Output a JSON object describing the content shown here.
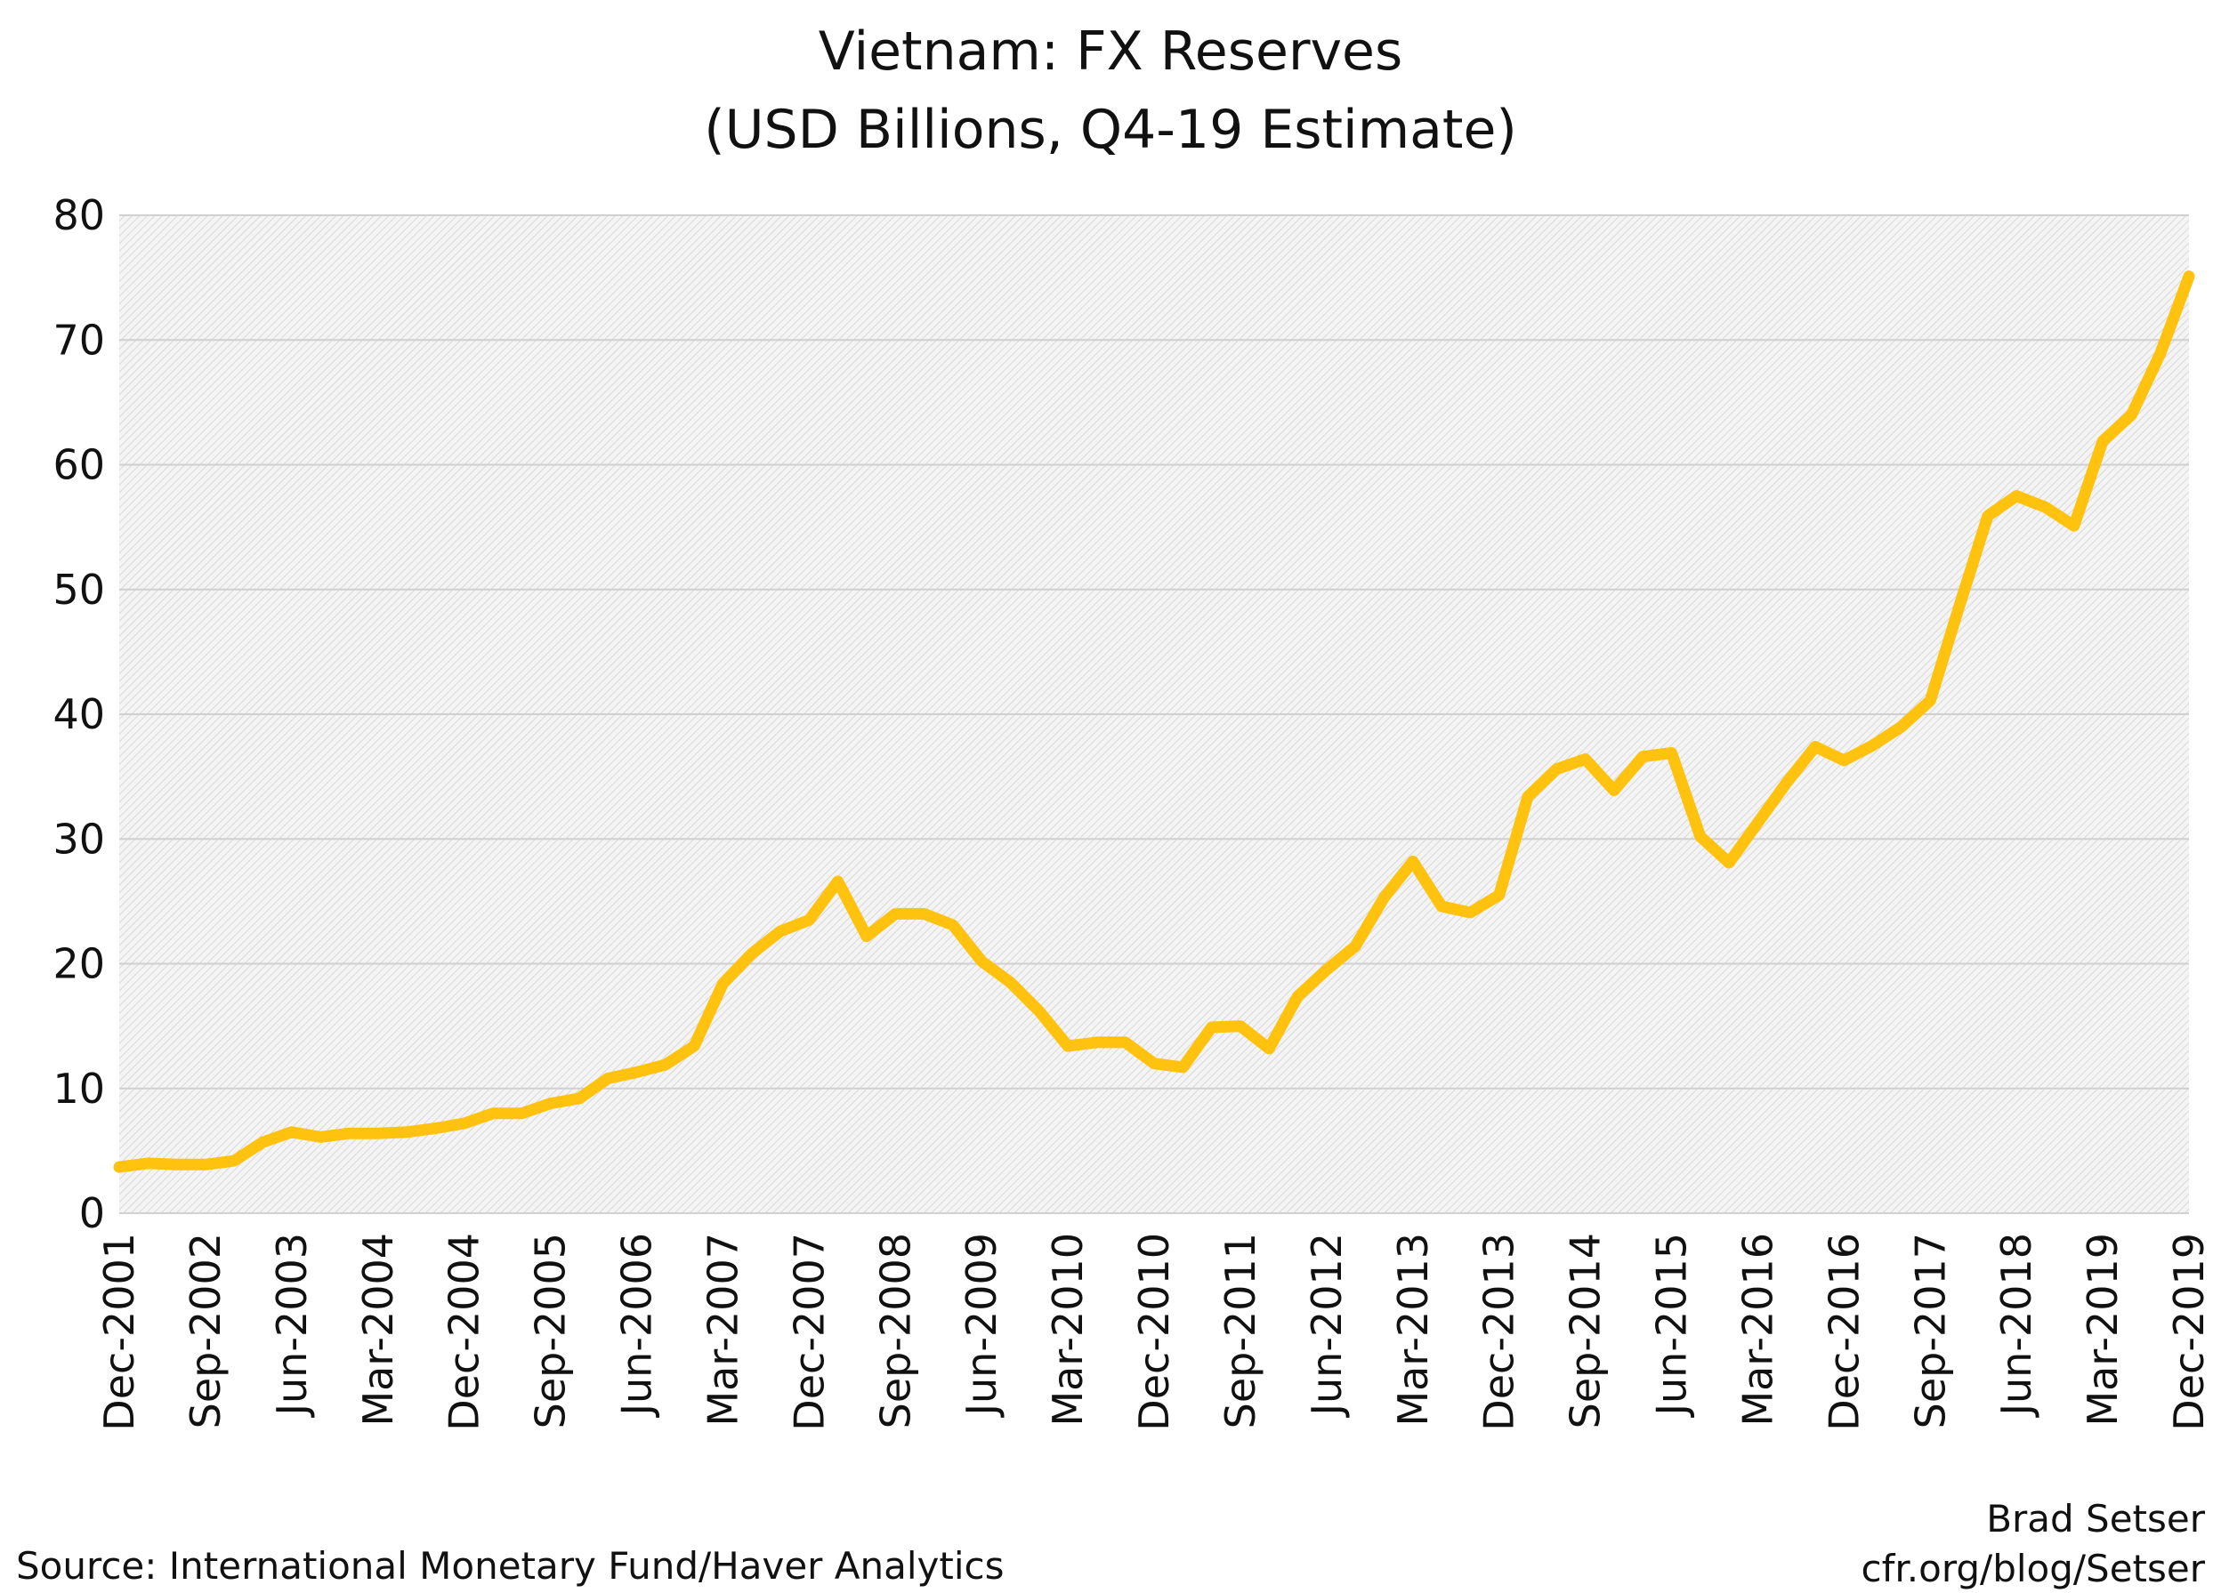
{
  "chart_data": {
    "type": "line",
    "title": "Vietnam: FX Reserves",
    "subtitle": "(USD Billions, Q4-19 Estimate)",
    "xlabel": "",
    "ylabel": "",
    "ylim": [
      0,
      80
    ],
    "yticks": [
      0,
      10,
      20,
      30,
      40,
      50,
      60,
      70,
      80
    ],
    "grid": true,
    "line_color": "#FFC20E",
    "x": [
      "Dec-2001",
      "Mar-2002",
      "Jun-2002",
      "Sep-2002",
      "Dec-2002",
      "Mar-2003",
      "Jun-2003",
      "Sep-2003",
      "Dec-2003",
      "Mar-2004",
      "Jun-2004",
      "Sep-2004",
      "Dec-2004",
      "Mar-2005",
      "Jun-2005",
      "Sep-2005",
      "Dec-2005",
      "Mar-2006",
      "Jun-2006",
      "Sep-2006",
      "Dec-2006",
      "Mar-2007",
      "Jun-2007",
      "Sep-2007",
      "Dec-2007",
      "Mar-2008",
      "Jun-2008",
      "Sep-2008",
      "Dec-2008",
      "Mar-2009",
      "Jun-2009",
      "Sep-2009",
      "Dec-2009",
      "Mar-2010",
      "Jun-2010",
      "Sep-2010",
      "Dec-2010",
      "Mar-2011",
      "Jun-2011",
      "Sep-2011",
      "Dec-2011",
      "Mar-2012",
      "Jun-2012",
      "Sep-2012",
      "Dec-2012",
      "Mar-2013",
      "Jun-2013",
      "Sep-2013",
      "Dec-2013",
      "Mar-2014",
      "Jun-2014",
      "Sep-2014",
      "Dec-2014",
      "Mar-2015",
      "Jun-2015",
      "Sep-2015",
      "Dec-2015",
      "Mar-2016",
      "Jun-2016",
      "Sep-2016",
      "Dec-2016",
      "Mar-2017",
      "Jun-2017",
      "Sep-2017",
      "Dec-2017",
      "Mar-2018",
      "Jun-2018",
      "Sep-2018",
      "Dec-2018",
      "Mar-2019",
      "Jun-2019",
      "Sep-2019",
      "Dec-2019"
    ],
    "xtick_labels": [
      "Dec-2001",
      "Sep-2002",
      "Jun-2003",
      "Mar-2004",
      "Dec-2004",
      "Sep-2005",
      "Jun-2006",
      "Mar-2007",
      "Dec-2007",
      "Sep-2008",
      "Jun-2009",
      "Mar-2010",
      "Dec-2010",
      "Sep-2011",
      "Jun-2012",
      "Mar-2013",
      "Dec-2013",
      "Sep-2014",
      "Jun-2015",
      "Mar-2016",
      "Dec-2016",
      "Sep-2017",
      "Jun-2018",
      "Mar-2019",
      "Dec-2019"
    ],
    "series": [
      {
        "values": [
          3.7,
          4.0,
          3.9,
          3.9,
          4.2,
          5.7,
          6.5,
          6.1,
          6.4,
          6.4,
          6.5,
          6.8,
          7.2,
          8.0,
          8.0,
          8.8,
          9.2,
          10.8,
          11.3,
          11.9,
          13.4,
          18.4,
          20.8,
          22.6,
          23.5,
          26.6,
          22.2,
          24.0,
          24.0,
          23.1,
          20.2,
          18.5,
          16.2,
          13.4,
          13.7,
          13.7,
          12.0,
          11.7,
          14.9,
          15.0,
          13.2,
          17.4,
          19.5,
          21.4,
          25.3,
          28.2,
          24.6,
          24.1,
          25.5,
          33.4,
          35.6,
          36.4,
          33.9,
          36.6,
          36.9,
          30.2,
          28.1,
          31.3,
          34.5,
          37.4,
          36.3,
          37.5,
          39.0,
          41.1,
          48.6,
          55.9,
          57.5,
          56.6,
          55.1,
          61.9,
          64.0,
          68.9,
          75.1
        ]
      }
    ]
  },
  "footer": {
    "source": "Source: International Monetary Fund/Haver Analytics",
    "author": "Brad Setser",
    "site": "cfr.org/blog/Setser"
  }
}
